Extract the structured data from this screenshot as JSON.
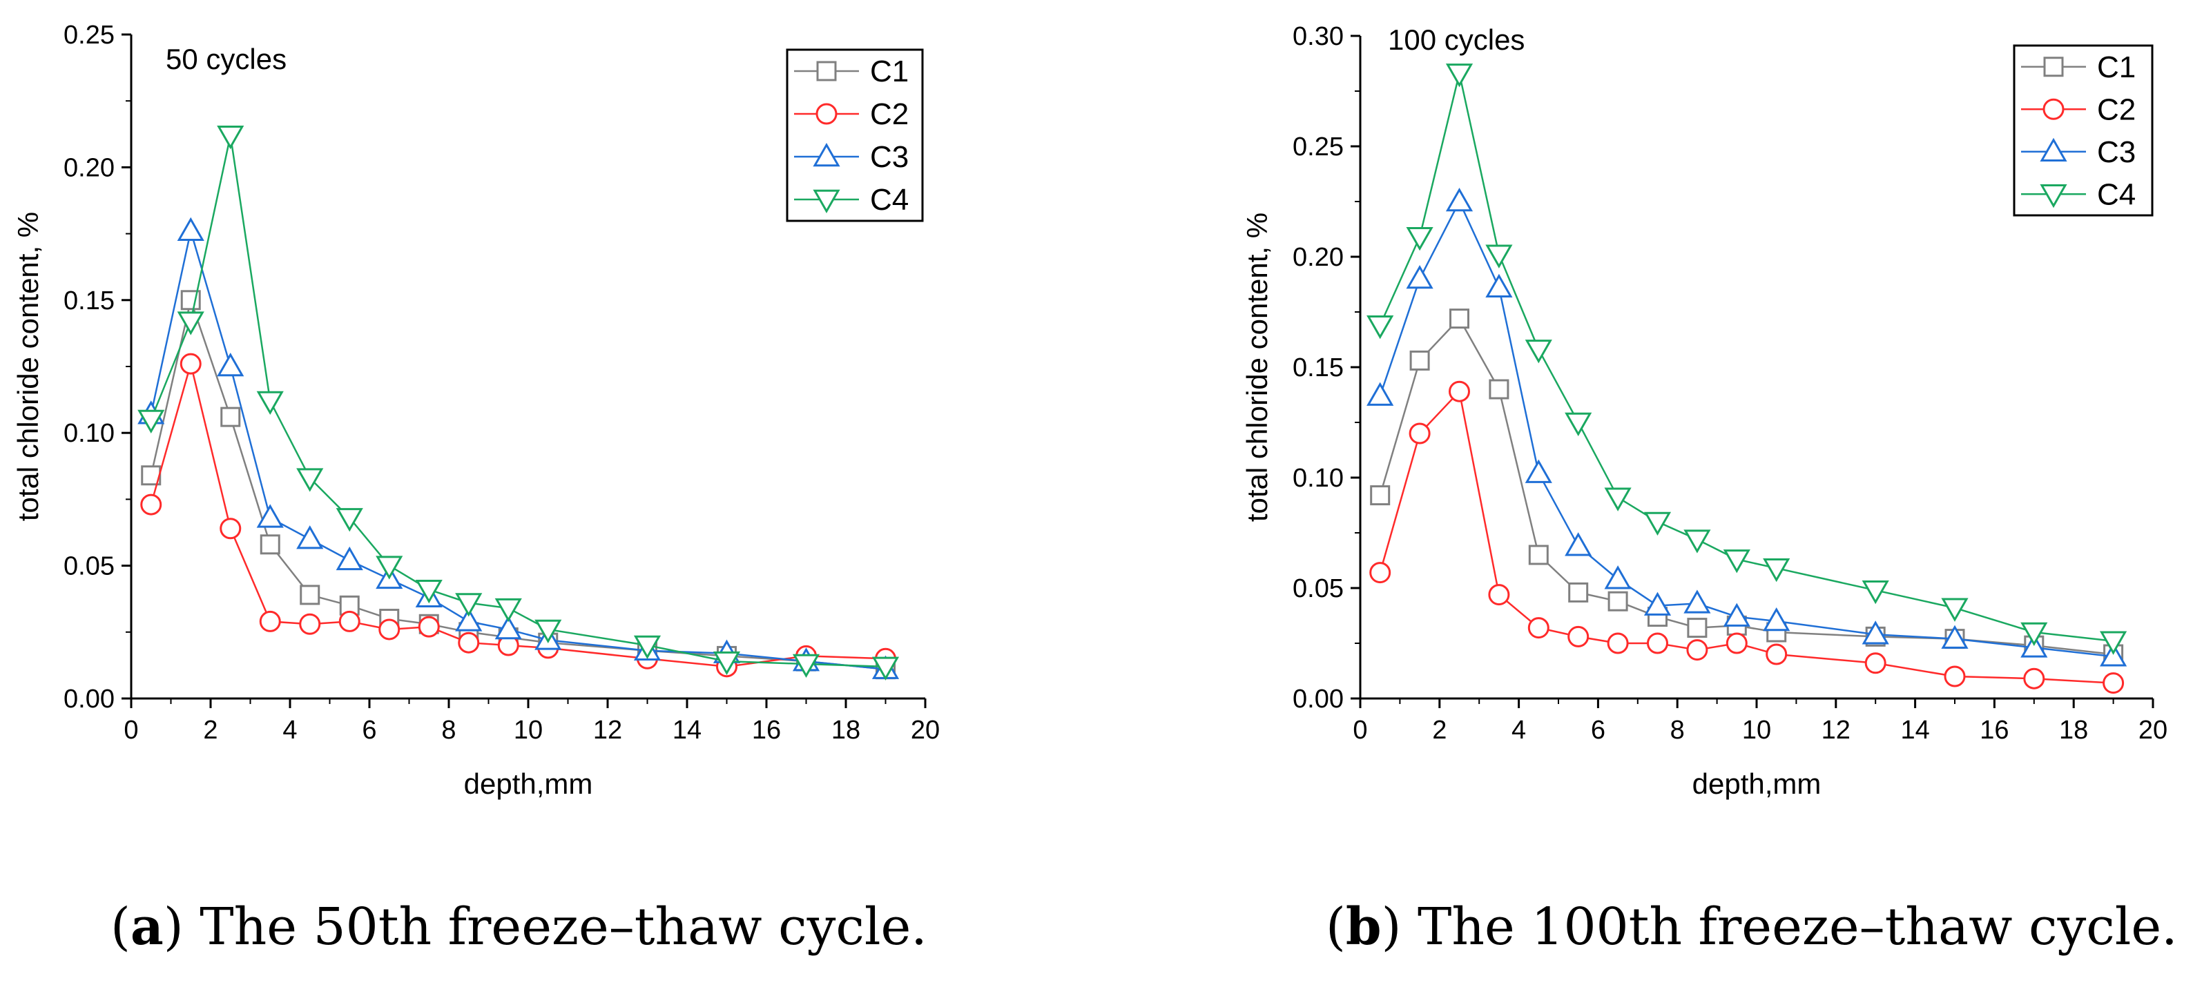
{
  "colors": {
    "C1": "#808080",
    "C2": "#ff2a2a",
    "C3": "#1f6fd6",
    "C4": "#1aa860"
  },
  "markers": {
    "C1": "square",
    "C2": "circle",
    "C3": "triangle-up",
    "C4": "triangle-down"
  },
  "captions": [
    {
      "letter": "a",
      "text": "The 50th freeze–thaw cycle."
    },
    {
      "letter": "b",
      "text": "The 100th freeze–thaw cycle."
    }
  ],
  "chart_data": [
    {
      "type": "line",
      "annotation": "50 cycles",
      "xlabel": "depth,mm",
      "ylabel": "total chloride content, %",
      "xlim": [
        0,
        20
      ],
      "ylim": [
        0,
        0.25
      ],
      "xticks": [
        "0",
        "2",
        "4",
        "6",
        "8",
        "10",
        "12",
        "14",
        "16",
        "18",
        "20"
      ],
      "yticks": [
        "0.00",
        "0.05",
        "0.10",
        "0.15",
        "0.20",
        "0.25"
      ],
      "legend_position": "top-right",
      "series": [
        {
          "name": "C1",
          "x": [
            0.5,
            1.5,
            2.5,
            3.5,
            4.5,
            5.5,
            6.5,
            7.5,
            8.5,
            9.5,
            10.5,
            13,
            15,
            17,
            19
          ],
          "values": [
            0.084,
            0.15,
            0.106,
            0.058,
            0.039,
            0.035,
            0.03,
            0.028,
            0.025,
            0.023,
            0.021,
            0.018,
            0.016,
            0.014,
            0.011
          ]
        },
        {
          "name": "C2",
          "x": [
            0.5,
            1.5,
            2.5,
            3.5,
            4.5,
            5.5,
            6.5,
            7.5,
            8.5,
            9.5,
            10.5,
            13,
            15,
            17,
            19
          ],
          "values": [
            0.073,
            0.126,
            0.064,
            0.029,
            0.028,
            0.029,
            0.026,
            0.027,
            0.021,
            0.02,
            0.019,
            0.015,
            0.012,
            0.016,
            0.015
          ]
        },
        {
          "name": "C3",
          "x": [
            0.5,
            1.5,
            2.5,
            3.5,
            4.5,
            5.5,
            6.5,
            7.5,
            8.5,
            9.5,
            10.5,
            13,
            15,
            17,
            19
          ],
          "values": [
            0.107,
            0.176,
            0.125,
            0.068,
            0.06,
            0.052,
            0.045,
            0.038,
            0.029,
            0.026,
            0.022,
            0.018,
            0.017,
            0.014,
            0.011
          ]
        },
        {
          "name": "C4",
          "x": [
            0.5,
            1.5,
            2.5,
            3.5,
            4.5,
            5.5,
            6.5,
            7.5,
            8.5,
            9.5,
            10.5,
            13,
            15,
            17,
            19
          ],
          "values": [
            0.105,
            0.142,
            0.212,
            0.112,
            0.083,
            0.068,
            0.05,
            0.041,
            0.036,
            0.034,
            0.026,
            0.02,
            0.014,
            0.013,
            0.012
          ]
        }
      ]
    },
    {
      "type": "line",
      "annotation": "100 cycles",
      "xlabel": "depth,mm",
      "ylabel": "total chloride content, %",
      "xlim": [
        0,
        20
      ],
      "ylim": [
        0,
        0.3
      ],
      "xticks": [
        "0",
        "2",
        "4",
        "6",
        "8",
        "10",
        "12",
        "14",
        "16",
        "18",
        "20"
      ],
      "yticks": [
        "0.00",
        "0.05",
        "0.10",
        "0.15",
        "0.20",
        "0.25",
        "0.30"
      ],
      "legend_position": "top-right",
      "series": [
        {
          "name": "C1",
          "x": [
            0.5,
            1.5,
            2.5,
            3.5,
            4.5,
            5.5,
            6.5,
            7.5,
            8.5,
            9.5,
            10.5,
            13,
            15,
            17,
            19
          ],
          "values": [
            0.092,
            0.153,
            0.172,
            0.14,
            0.065,
            0.048,
            0.044,
            0.037,
            0.032,
            0.033,
            0.03,
            0.028,
            0.027,
            0.024,
            0.02
          ]
        },
        {
          "name": "C2",
          "x": [
            0.5,
            1.5,
            2.5,
            3.5,
            4.5,
            5.5,
            6.5,
            7.5,
            8.5,
            9.5,
            10.5,
            13,
            15,
            17,
            19
          ],
          "values": [
            0.057,
            0.12,
            0.139,
            0.047,
            0.032,
            0.028,
            0.025,
            0.025,
            0.022,
            0.025,
            0.02,
            0.016,
            0.01,
            0.009,
            0.007
          ]
        },
        {
          "name": "C3",
          "x": [
            0.5,
            1.5,
            2.5,
            3.5,
            4.5,
            5.5,
            6.5,
            7.5,
            8.5,
            9.5,
            10.5,
            13,
            15,
            17,
            19
          ],
          "values": [
            0.137,
            0.19,
            0.225,
            0.186,
            0.102,
            0.069,
            0.054,
            0.042,
            0.043,
            0.037,
            0.035,
            0.029,
            0.027,
            0.023,
            0.019
          ]
        },
        {
          "name": "C4",
          "x": [
            0.5,
            1.5,
            2.5,
            3.5,
            4.5,
            5.5,
            6.5,
            7.5,
            8.5,
            9.5,
            10.5,
            13,
            15,
            17,
            19
          ],
          "values": [
            0.169,
            0.209,
            0.283,
            0.201,
            0.158,
            0.125,
            0.091,
            0.08,
            0.072,
            0.063,
            0.059,
            0.049,
            0.041,
            0.03,
            0.026
          ]
        }
      ]
    }
  ]
}
